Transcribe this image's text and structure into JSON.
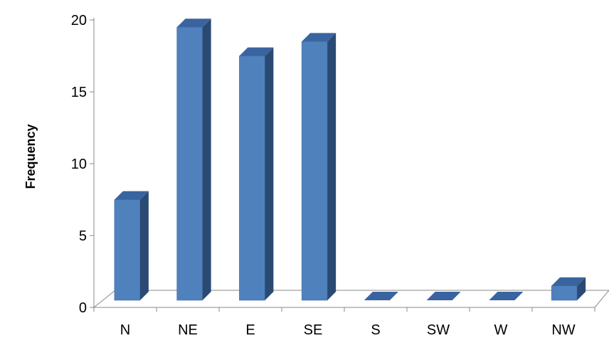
{
  "chart_data": {
    "type": "bar",
    "categories": [
      "N",
      "NE",
      "E",
      "SE",
      "S",
      "SW",
      "W",
      "NW"
    ],
    "values": [
      7,
      19,
      17,
      18,
      0,
      0,
      0,
      1
    ],
    "ylabel": "Frequency",
    "xlabel": "",
    "ylim": [
      0,
      20
    ],
    "yticks": [
      "0",
      "5",
      "10",
      "15",
      "20"
    ],
    "grid": false,
    "style": "3d-column",
    "colors": {
      "front": "#4F81BD",
      "side": "#2B4A73",
      "top": "#3A64A0",
      "axis": "#888888"
    }
  }
}
